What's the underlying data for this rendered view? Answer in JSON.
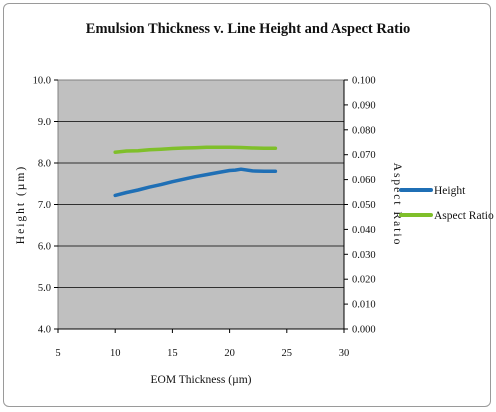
{
  "chart_data": {
    "type": "line",
    "title": "Emulsion Thickness v. Line Height and Aspect Ratio",
    "xlabel": "EOM Thickness (µm)",
    "ylabel": "Height (µm)",
    "y2label": "Aspect Ratio",
    "xlim": [
      5,
      30
    ],
    "ylim": [
      4.0,
      10.0
    ],
    "y2lim": [
      0.0,
      0.1
    ],
    "xticks": [
      "5",
      "10",
      "15",
      "20",
      "25",
      "30"
    ],
    "yticks": [
      "4.0",
      "5.0",
      "6.0",
      "7.0",
      "8.0",
      "9.0",
      "10.0"
    ],
    "y2ticks": [
      "0.000",
      "0.010",
      "0.020",
      "0.030",
      "0.040",
      "0.050",
      "0.060",
      "0.070",
      "0.080",
      "0.090",
      "0.100"
    ],
    "grid": "horizontal",
    "legend": "right",
    "plot_background": "#c0c0c0",
    "series": [
      {
        "name": "Height",
        "axis": "left",
        "color": "#1f6fb5",
        "x": [
          10,
          11,
          12,
          13,
          14,
          15,
          16,
          17,
          18,
          19,
          20,
          20.5,
          21,
          22,
          23,
          24
        ],
        "y": [
          7.22,
          7.29,
          7.35,
          7.42,
          7.48,
          7.55,
          7.61,
          7.67,
          7.72,
          7.77,
          7.82,
          7.83,
          7.85,
          7.81,
          7.8,
          7.8
        ]
      },
      {
        "name": "Aspect Ratio",
        "axis": "right",
        "color": "#7fbf2a",
        "x": [
          10,
          11,
          12,
          13,
          14,
          15,
          16,
          17,
          18,
          19,
          20,
          21,
          22,
          23,
          24
        ],
        "y": [
          0.071,
          0.0715,
          0.0716,
          0.072,
          0.0722,
          0.0725,
          0.0727,
          0.0728,
          0.073,
          0.073,
          0.073,
          0.0729,
          0.0727,
          0.0726,
          0.0726
        ]
      }
    ]
  }
}
